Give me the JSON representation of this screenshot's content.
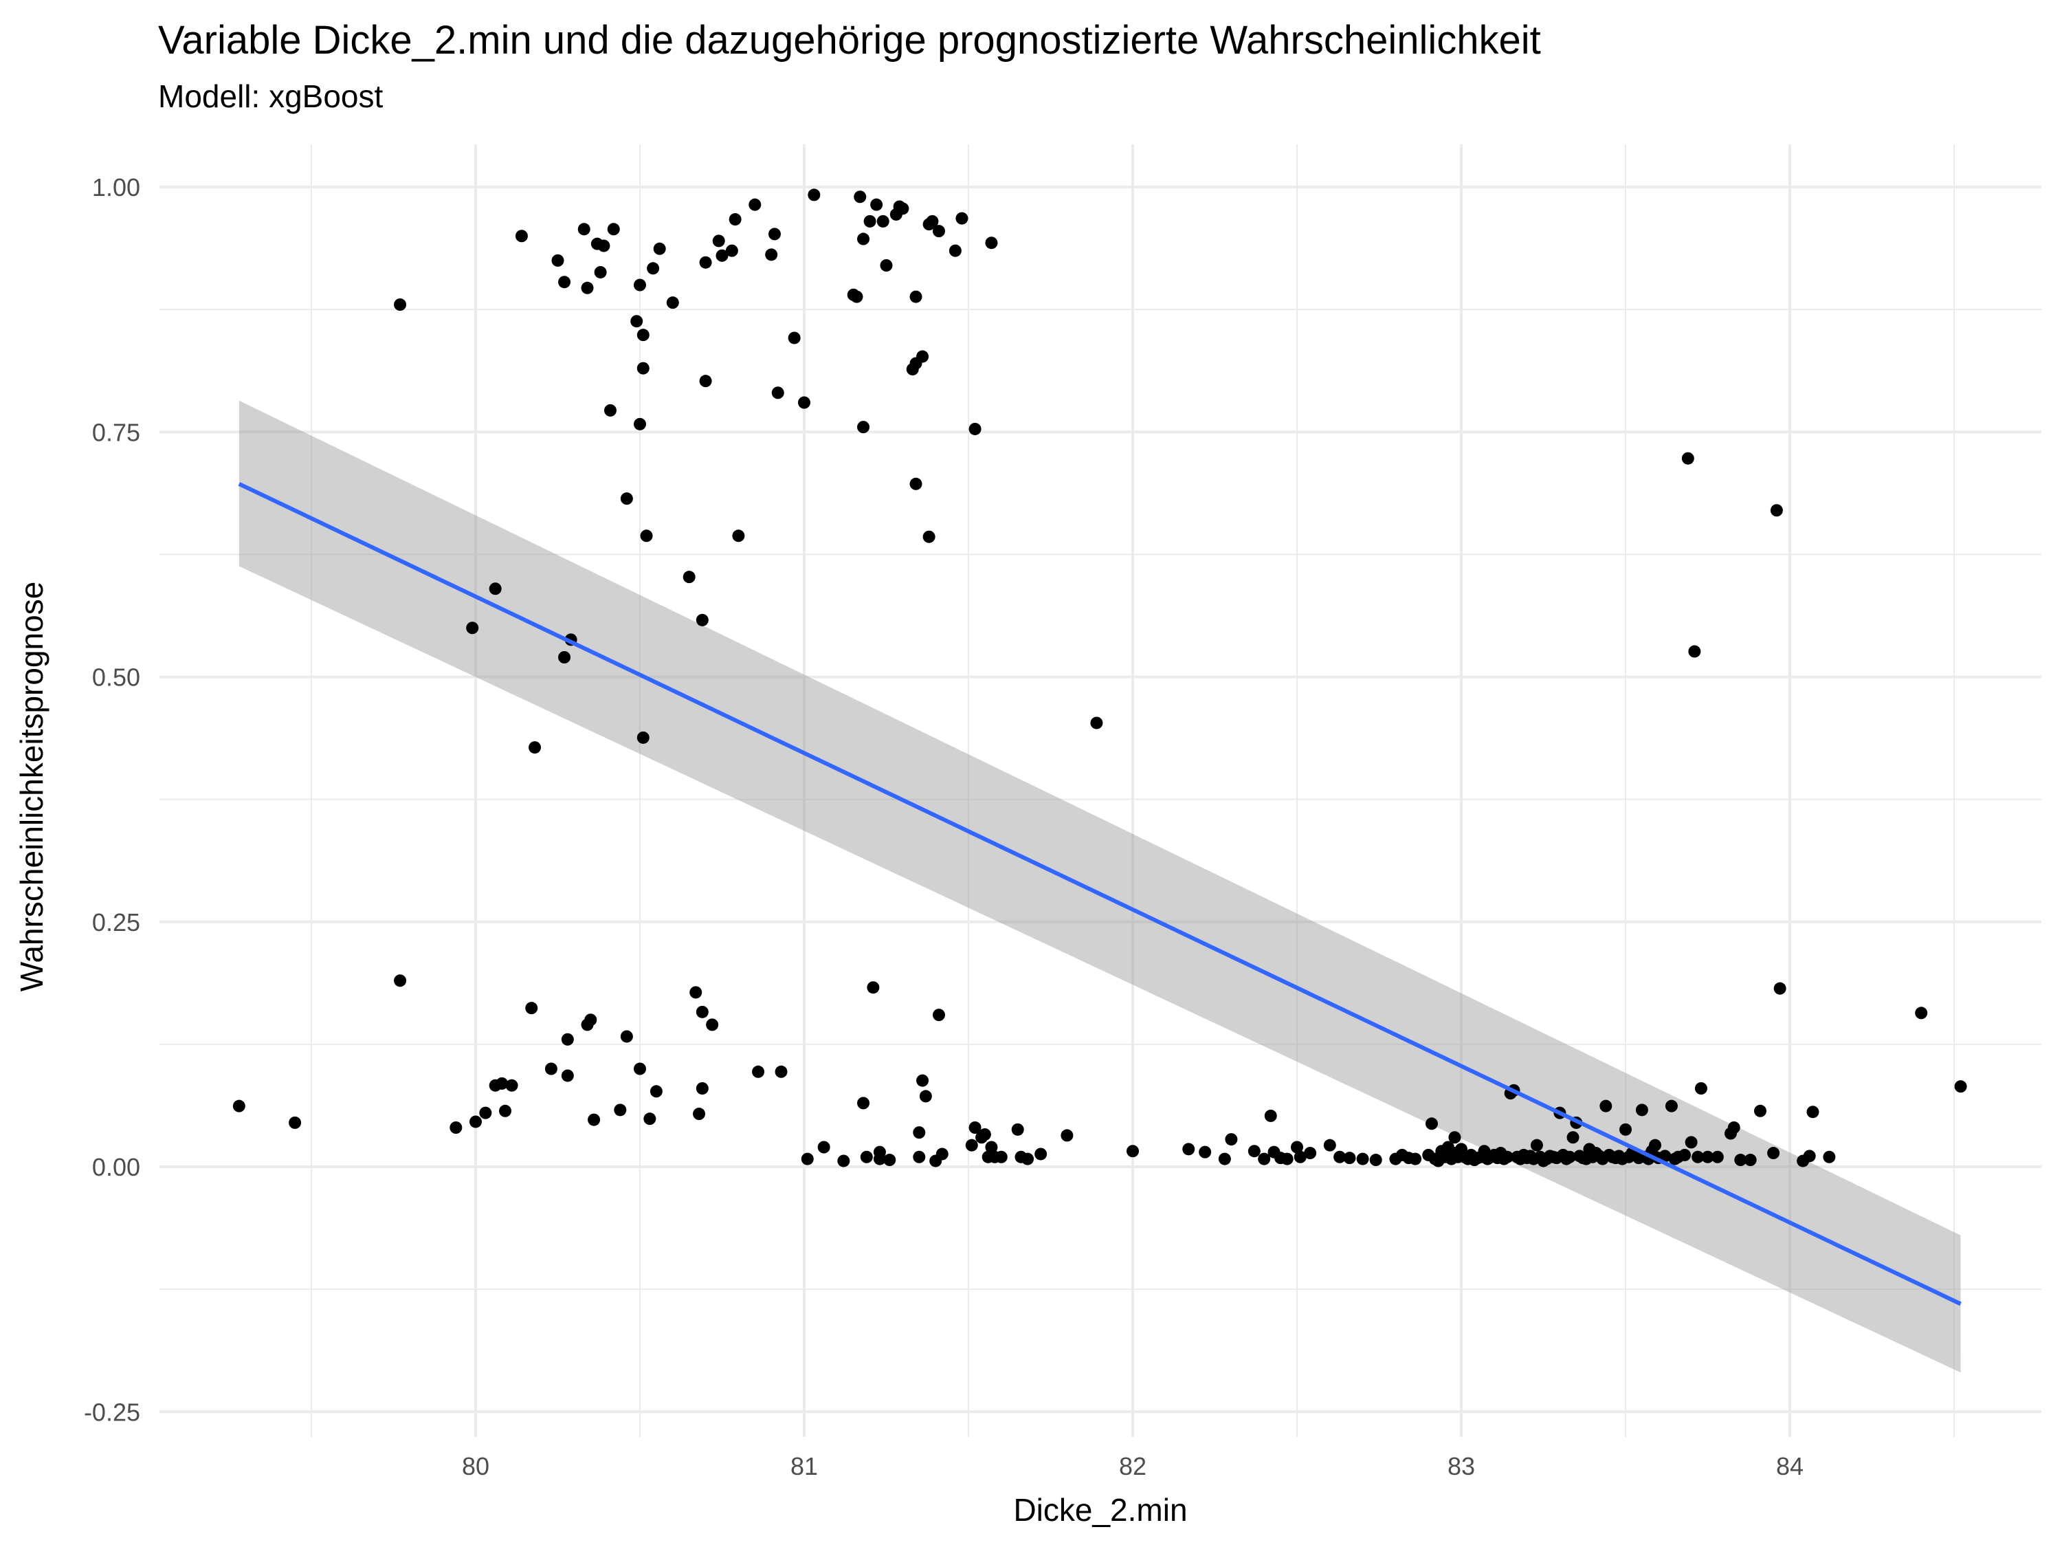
{
  "chart_data": {
    "type": "scatter",
    "title": "Variable Dicke_2.min und die dazugehörige prognostizierte Wahrscheinlichkeit",
    "subtitle": "Modell: xgBoost",
    "xlabel": "Dicke_2.min",
    "ylabel": "Wahrscheinlichkeitsprognose",
    "xlim": [
      79.2,
      84.6
    ],
    "ylim": [
      -0.25,
      1.0
    ],
    "x_ticks": [
      "80",
      "81",
      "82",
      "83",
      "84"
    ],
    "y_ticks": [
      "-0.25",
      "0.00",
      "0.25",
      "0.50",
      "0.75",
      "1.00"
    ],
    "grid": true,
    "legend": "none",
    "colors": {
      "points": "#000000",
      "fit_line": "#3366FF",
      "band": "#999999",
      "grid": "#ebebeb"
    },
    "points": [
      [
        79.28,
        0.062
      ],
      [
        79.45,
        0.045
      ],
      [
        79.77,
        0.88
      ],
      [
        79.77,
        0.19
      ],
      [
        79.94,
        0.04
      ],
      [
        79.99,
        0.55
      ],
      [
        80.0,
        0.046
      ],
      [
        80.03,
        0.055
      ],
      [
        80.06,
        0.083
      ],
      [
        80.06,
        0.59
      ],
      [
        80.08,
        0.085
      ],
      [
        80.09,
        0.057
      ],
      [
        80.11,
        0.083
      ],
      [
        80.14,
        0.95
      ],
      [
        80.17,
        0.162
      ],
      [
        80.18,
        0.428
      ],
      [
        80.23,
        0.1
      ],
      [
        80.25,
        0.925
      ],
      [
        80.27,
        0.52
      ],
      [
        80.27,
        0.903
      ],
      [
        80.28,
        0.093
      ],
      [
        80.28,
        0.13
      ],
      [
        80.29,
        0.538
      ],
      [
        80.33,
        0.957
      ],
      [
        80.34,
        0.897
      ],
      [
        80.34,
        0.145
      ],
      [
        80.35,
        0.15
      ],
      [
        80.36,
        0.048
      ],
      [
        80.37,
        0.942
      ],
      [
        80.38,
        0.913
      ],
      [
        80.39,
        0.94
      ],
      [
        80.41,
        0.772
      ],
      [
        80.42,
        0.957
      ],
      [
        80.44,
        0.058
      ],
      [
        80.46,
        0.682
      ],
      [
        80.46,
        0.133
      ],
      [
        80.49,
        0.863
      ],
      [
        80.5,
        0.9
      ],
      [
        80.5,
        0.758
      ],
      [
        80.5,
        0.1
      ],
      [
        80.51,
        0.849
      ],
      [
        80.51,
        0.438
      ],
      [
        80.51,
        0.815
      ],
      [
        80.52,
        0.644
      ],
      [
        80.53,
        0.049
      ],
      [
        80.54,
        0.917
      ],
      [
        80.55,
        0.077
      ],
      [
        80.56,
        0.937
      ],
      [
        80.6,
        0.882
      ],
      [
        80.65,
        0.602
      ],
      [
        80.67,
        0.178
      ],
      [
        80.68,
        0.054
      ],
      [
        80.69,
        0.558
      ],
      [
        80.69,
        0.08
      ],
      [
        80.69,
        0.158
      ],
      [
        80.7,
        0.923
      ],
      [
        80.7,
        0.802
      ],
      [
        80.72,
        0.145
      ],
      [
        80.74,
        0.945
      ],
      [
        80.75,
        0.93
      ],
      [
        80.78,
        0.935
      ],
      [
        80.79,
        0.967
      ],
      [
        80.8,
        0.644
      ],
      [
        80.85,
        0.982
      ],
      [
        80.86,
        0.097
      ],
      [
        80.9,
        0.931
      ],
      [
        80.91,
        0.952
      ],
      [
        80.92,
        0.79
      ],
      [
        80.93,
        0.097
      ],
      [
        80.97,
        0.846
      ],
      [
        81.0,
        0.78
      ],
      [
        81.01,
        0.008
      ],
      [
        81.03,
        0.992
      ],
      [
        81.06,
        0.02
      ],
      [
        81.12,
        0.006
      ],
      [
        81.15,
        0.89
      ],
      [
        81.16,
        0.888
      ],
      [
        81.17,
        0.99
      ],
      [
        81.18,
        0.755
      ],
      [
        81.18,
        0.065
      ],
      [
        81.18,
        0.947
      ],
      [
        81.19,
        0.01
      ],
      [
        81.2,
        0.965
      ],
      [
        81.21,
        0.183
      ],
      [
        81.22,
        0.982
      ],
      [
        81.23,
        0.015
      ],
      [
        81.23,
        0.008
      ],
      [
        81.24,
        0.965
      ],
      [
        81.25,
        0.92
      ],
      [
        81.26,
        0.007
      ],
      [
        81.28,
        0.972
      ],
      [
        81.29,
        0.98
      ],
      [
        81.3,
        0.978
      ],
      [
        81.33,
        0.814
      ],
      [
        81.34,
        0.888
      ],
      [
        81.34,
        0.697
      ],
      [
        81.34,
        0.82
      ],
      [
        81.35,
        0.035
      ],
      [
        81.35,
        0.01
      ],
      [
        81.36,
        0.088
      ],
      [
        81.36,
        0.827
      ],
      [
        81.37,
        0.072
      ],
      [
        81.38,
        0.643
      ],
      [
        81.38,
        0.962
      ],
      [
        81.39,
        0.965
      ],
      [
        81.4,
        0.006
      ],
      [
        81.41,
        0.155
      ],
      [
        81.41,
        0.955
      ],
      [
        81.42,
        0.013
      ],
      [
        81.46,
        0.935
      ],
      [
        81.48,
        0.968
      ],
      [
        81.51,
        0.022
      ],
      [
        81.52,
        0.753
      ],
      [
        81.52,
        0.04
      ],
      [
        81.54,
        0.03
      ],
      [
        81.55,
        0.033
      ],
      [
        81.56,
        0.01
      ],
      [
        81.57,
        0.943
      ],
      [
        81.57,
        0.02
      ],
      [
        81.58,
        0.01
      ],
      [
        81.6,
        0.01
      ],
      [
        81.65,
        0.038
      ],
      [
        81.66,
        0.01
      ],
      [
        81.68,
        0.008
      ],
      [
        81.72,
        0.013
      ],
      [
        81.8,
        0.032
      ],
      [
        81.89,
        0.453
      ],
      [
        82.0,
        0.016
      ],
      [
        82.17,
        0.018
      ],
      [
        82.22,
        0.015
      ],
      [
        82.28,
        0.008
      ],
      [
        82.3,
        0.028
      ],
      [
        82.37,
        0.016
      ],
      [
        82.4,
        0.008
      ],
      [
        82.42,
        0.052
      ],
      [
        82.43,
        0.015
      ],
      [
        82.45,
        0.009
      ],
      [
        82.47,
        0.008
      ],
      [
        82.5,
        0.02
      ],
      [
        82.51,
        0.01
      ],
      [
        82.54,
        0.014
      ],
      [
        82.6,
        0.022
      ],
      [
        82.63,
        0.01
      ],
      [
        82.66,
        0.009
      ],
      [
        82.7,
        0.008
      ],
      [
        82.74,
        0.007
      ],
      [
        82.8,
        0.008
      ],
      [
        82.82,
        0.012
      ],
      [
        82.84,
        0.009
      ],
      [
        82.86,
        0.008
      ],
      [
        82.9,
        0.012
      ],
      [
        82.91,
        0.044
      ],
      [
        82.92,
        0.008
      ],
      [
        82.93,
        0.006
      ],
      [
        82.94,
        0.016
      ],
      [
        82.95,
        0.01
      ],
      [
        82.96,
        0.02
      ],
      [
        82.97,
        0.008
      ],
      [
        82.98,
        0.014
      ],
      [
        82.98,
        0.03
      ],
      [
        82.99,
        0.01
      ],
      [
        83.0,
        0.018
      ],
      [
        83.01,
        0.01
      ],
      [
        83.02,
        0.008
      ],
      [
        83.03,
        0.012
      ],
      [
        83.04,
        0.007
      ],
      [
        83.05,
        0.009
      ],
      [
        83.06,
        0.01
      ],
      [
        83.07,
        0.016
      ],
      [
        83.08,
        0.008
      ],
      [
        83.09,
        0.01
      ],
      [
        83.1,
        0.012
      ],
      [
        83.11,
        0.009
      ],
      [
        83.12,
        0.014
      ],
      [
        83.13,
        0.008
      ],
      [
        83.14,
        0.01
      ],
      [
        83.15,
        0.075
      ],
      [
        83.16,
        0.078
      ],
      [
        83.17,
        0.01
      ],
      [
        83.18,
        0.008
      ],
      [
        83.19,
        0.012
      ],
      [
        83.2,
        0.009
      ],
      [
        83.21,
        0.011
      ],
      [
        83.22,
        0.008
      ],
      [
        83.23,
        0.022
      ],
      [
        83.24,
        0.01
      ],
      [
        83.25,
        0.006
      ],
      [
        83.26,
        0.008
      ],
      [
        83.27,
        0.011
      ],
      [
        83.28,
        0.01
      ],
      [
        83.29,
        0.009
      ],
      [
        83.3,
        0.055
      ],
      [
        83.31,
        0.012
      ],
      [
        83.32,
        0.008
      ],
      [
        83.33,
        0.01
      ],
      [
        83.34,
        0.03
      ],
      [
        83.35,
        0.045
      ],
      [
        83.36,
        0.011
      ],
      [
        83.37,
        0.009
      ],
      [
        83.38,
        0.008
      ],
      [
        83.39,
        0.018
      ],
      [
        83.4,
        0.01
      ],
      [
        83.41,
        0.014
      ],
      [
        83.42,
        0.011
      ],
      [
        83.43,
        0.008
      ],
      [
        83.44,
        0.062
      ],
      [
        83.45,
        0.012
      ],
      [
        83.46,
        0.01
      ],
      [
        83.47,
        0.009
      ],
      [
        83.48,
        0.011
      ],
      [
        83.49,
        0.008
      ],
      [
        83.5,
        0.038
      ],
      [
        83.51,
        0.01
      ],
      [
        83.52,
        0.014
      ],
      [
        83.53,
        0.012
      ],
      [
        83.54,
        0.009
      ],
      [
        83.55,
        0.058
      ],
      [
        83.56,
        0.01
      ],
      [
        83.57,
        0.008
      ],
      [
        83.58,
        0.016
      ],
      [
        83.59,
        0.022
      ],
      [
        83.6,
        0.009
      ],
      [
        83.62,
        0.011
      ],
      [
        83.64,
        0.062
      ],
      [
        83.65,
        0.008
      ],
      [
        83.66,
        0.01
      ],
      [
        83.68,
        0.012
      ],
      [
        83.69,
        0.723
      ],
      [
        83.7,
        0.025
      ],
      [
        83.71,
        0.526
      ],
      [
        83.72,
        0.01
      ],
      [
        83.73,
        0.08
      ],
      [
        83.75,
        0.01
      ],
      [
        83.78,
        0.01
      ],
      [
        83.82,
        0.034
      ],
      [
        83.83,
        0.04
      ],
      [
        83.85,
        0.007
      ],
      [
        83.88,
        0.007
      ],
      [
        83.91,
        0.057
      ],
      [
        83.95,
        0.014
      ],
      [
        83.96,
        0.67
      ],
      [
        83.97,
        0.182
      ],
      [
        84.04,
        0.006
      ],
      [
        84.06,
        0.011
      ],
      [
        84.07,
        0.056
      ],
      [
        84.12,
        0.01
      ],
      [
        84.4,
        0.157
      ],
      [
        84.52,
        0.082
      ]
    ],
    "fit_line": {
      "x": [
        79.28,
        84.52
      ],
      "y": [
        0.697,
        -0.14
      ]
    },
    "confidence_band": {
      "x": [
        79.28,
        84.52
      ],
      "upper": [
        0.782,
        -0.07
      ],
      "lower": [
        0.613,
        -0.21
      ]
    }
  }
}
